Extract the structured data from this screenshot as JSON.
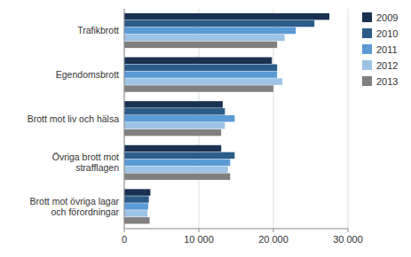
{
  "chart_data": {
    "type": "bar",
    "orientation": "horizontal",
    "categories": [
      "Trafikbrott",
      "Egendomsbrott",
      "Brott mot liv och hälsa",
      "Övriga brott mot\nstrafflagen",
      "Brott mot övriga lagar\noch förordningar"
    ],
    "series": [
      {
        "name": "2009",
        "color": "#1a3153",
        "values": [
          27500,
          19800,
          13200,
          13000,
          3500
        ]
      },
      {
        "name": "2010",
        "color": "#2b5c8a",
        "values": [
          25500,
          20500,
          13500,
          14800,
          3300
        ]
      },
      {
        "name": "2011",
        "color": "#5b9bd5",
        "values": [
          23000,
          20500,
          14800,
          14200,
          3200
        ]
      },
      {
        "name": "2012",
        "color": "#9dc3e6",
        "values": [
          21500,
          21200,
          13500,
          13900,
          3100
        ]
      },
      {
        "name": "2013",
        "color": "#808080",
        "values": [
          20500,
          20000,
          13000,
          14200,
          3400
        ]
      }
    ],
    "xlim": [
      0,
      30000
    ],
    "xticks": [
      0,
      {
        "value": 10000,
        "label": "10 000"
      },
      {
        "value": 20000,
        "label": "20 000"
      },
      {
        "value": 30000,
        "label": "30 000"
      }
    ],
    "grid": true,
    "legend": "right"
  }
}
